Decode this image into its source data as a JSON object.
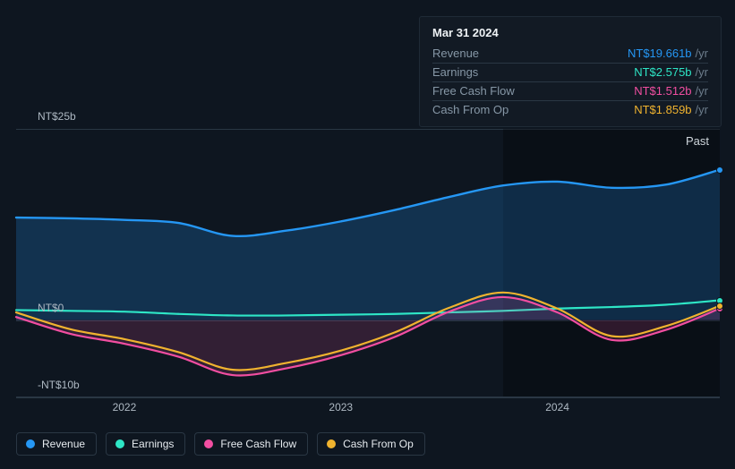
{
  "chart": {
    "type": "area-line",
    "background_color": "#0e1620",
    "grid_color": "#2a3744",
    "font_color": "#aeb9c3",
    "y_axis": {
      "min": -10,
      "max": 25,
      "ticks": [
        {
          "value": 25,
          "label": "NT$25b"
        },
        {
          "value": 0,
          "label": "NT$0"
        },
        {
          "value": -10,
          "label": "-NT$10b"
        }
      ]
    },
    "x_axis": {
      "min": 2021.5,
      "max": 2024.75,
      "ticks": [
        {
          "value": 2022,
          "label": "2022"
        },
        {
          "value": 2023,
          "label": "2023"
        },
        {
          "value": 2024,
          "label": "2024"
        }
      ],
      "cursor_position": 2023.75,
      "future_shade_color": "rgba(0,0,0,0.3)",
      "past_label": "Past"
    },
    "series": [
      {
        "key": "revenue",
        "label": "Revenue",
        "color": "#2597f4",
        "fill_opacity": 0.22,
        "line_width": 2.4,
        "data": [
          {
            "x": 2021.5,
            "y": 13.4
          },
          {
            "x": 2021.75,
            "y": 13.3
          },
          {
            "x": 2022.0,
            "y": 13.1
          },
          {
            "x": 2022.25,
            "y": 12.7
          },
          {
            "x": 2022.5,
            "y": 11.0
          },
          {
            "x": 2022.75,
            "y": 11.7
          },
          {
            "x": 2023.0,
            "y": 12.9
          },
          {
            "x": 2023.25,
            "y": 14.4
          },
          {
            "x": 2023.5,
            "y": 16.1
          },
          {
            "x": 2023.75,
            "y": 17.6
          },
          {
            "x": 2024.0,
            "y": 18.1
          },
          {
            "x": 2024.25,
            "y": 17.3
          },
          {
            "x": 2024.5,
            "y": 17.7
          },
          {
            "x": 2024.75,
            "y": 19.66
          }
        ]
      },
      {
        "key": "earnings",
        "label": "Earnings",
        "color": "#2ee6c6",
        "fill_opacity": 0.0,
        "line_width": 2.2,
        "data": [
          {
            "x": 2021.5,
            "y": 1.3
          },
          {
            "x": 2021.75,
            "y": 1.2
          },
          {
            "x": 2022.0,
            "y": 1.1
          },
          {
            "x": 2022.25,
            "y": 0.8
          },
          {
            "x": 2022.5,
            "y": 0.6
          },
          {
            "x": 2022.75,
            "y": 0.6
          },
          {
            "x": 2023.0,
            "y": 0.7
          },
          {
            "x": 2023.25,
            "y": 0.8
          },
          {
            "x": 2023.5,
            "y": 1.0
          },
          {
            "x": 2023.75,
            "y": 1.2
          },
          {
            "x": 2024.0,
            "y": 1.5
          },
          {
            "x": 2024.25,
            "y": 1.7
          },
          {
            "x": 2024.5,
            "y": 2.0
          },
          {
            "x": 2024.75,
            "y": 2.58
          }
        ]
      },
      {
        "key": "fcf",
        "label": "Free Cash Flow",
        "color": "#f24ea1",
        "fill_opacity": 0.16,
        "line_width": 2.2,
        "data": [
          {
            "x": 2021.5,
            "y": 0.4
          },
          {
            "x": 2021.75,
            "y": -1.8
          },
          {
            "x": 2022.0,
            "y": -3.1
          },
          {
            "x": 2022.25,
            "y": -4.8
          },
          {
            "x": 2022.5,
            "y": -7.2
          },
          {
            "x": 2022.75,
            "y": -6.3
          },
          {
            "x": 2023.0,
            "y": -4.6
          },
          {
            "x": 2023.25,
            "y": -2.2
          },
          {
            "x": 2023.5,
            "y": 1.1
          },
          {
            "x": 2023.75,
            "y": 3.0
          },
          {
            "x": 2024.0,
            "y": 1.0
          },
          {
            "x": 2024.25,
            "y": -2.6
          },
          {
            "x": 2024.5,
            "y": -1.3
          },
          {
            "x": 2024.75,
            "y": 1.51
          }
        ]
      },
      {
        "key": "cfo",
        "label": "Cash From Op",
        "color": "#f0b32f",
        "fill_opacity": 0.0,
        "line_width": 2.2,
        "data": [
          {
            "x": 2021.5,
            "y": 1.0
          },
          {
            "x": 2021.75,
            "y": -1.2
          },
          {
            "x": 2022.0,
            "y": -2.5
          },
          {
            "x": 2022.25,
            "y": -4.2
          },
          {
            "x": 2022.5,
            "y": -6.5
          },
          {
            "x": 2022.75,
            "y": -5.6
          },
          {
            "x": 2023.0,
            "y": -4.0
          },
          {
            "x": 2023.25,
            "y": -1.6
          },
          {
            "x": 2023.5,
            "y": 1.6
          },
          {
            "x": 2023.75,
            "y": 3.6
          },
          {
            "x": 2024.0,
            "y": 1.5
          },
          {
            "x": 2024.25,
            "y": -2.1
          },
          {
            "x": 2024.5,
            "y": -0.8
          },
          {
            "x": 2024.75,
            "y": 1.86
          }
        ]
      }
    ]
  },
  "tooltip": {
    "date": "Mar 31 2024",
    "unit_suffix": "/yr",
    "rows": [
      {
        "label": "Revenue",
        "value": "NT$19.661b",
        "color": "#2597f4"
      },
      {
        "label": "Earnings",
        "value": "NT$2.575b",
        "color": "#2ee6c6"
      },
      {
        "label": "Free Cash Flow",
        "value": "NT$1.512b",
        "color": "#f24ea1"
      },
      {
        "label": "Cash From Op",
        "value": "NT$1.859b",
        "color": "#f0b32f"
      }
    ]
  },
  "legend": {
    "items": [
      {
        "key": "revenue",
        "label": "Revenue",
        "color": "#2597f4"
      },
      {
        "key": "earnings",
        "label": "Earnings",
        "color": "#2ee6c6"
      },
      {
        "key": "fcf",
        "label": "Free Cash Flow",
        "color": "#f24ea1"
      },
      {
        "key": "cfo",
        "label": "Cash From Op",
        "color": "#f0b32f"
      }
    ]
  }
}
